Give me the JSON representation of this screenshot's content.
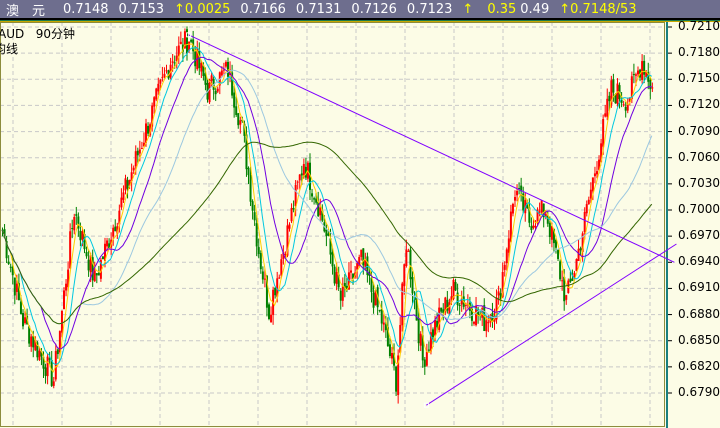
{
  "header": {
    "name": "澳　元",
    "fields": [
      "0.7148",
      "0.7153"
    ],
    "change_arrow": "↑",
    "change": "0.0025",
    "fields2": [
      "0.7166",
      "0.7131",
      "0.7126",
      "0.7123"
    ],
    "arrow2": "↑",
    "pct": "0.35",
    "field3": "0.49",
    "arrow3": "↑",
    "last": "0.7148/53"
  },
  "chart_label": {
    "symbol": "AUD",
    "period": "90分钟",
    "indicator": "均线"
  },
  "colors": {
    "up": "#ff0000",
    "down": "#008000",
    "trendline": "#8000ff",
    "ma_fast": "#ffd000",
    "ma_10": "#00c8e0",
    "ma_20": "#7000e0",
    "ma_40": "#9cc8e0",
    "ma_90": "#336600",
    "bg": "#fcfce6"
  },
  "chart_data": {
    "type": "candlestick",
    "y_ticks": [
      "0.7210",
      "0.7180",
      "0.7150",
      "0.7120",
      "0.7090",
      "0.7060",
      "0.7030",
      "0.7000",
      "0.6970",
      "0.6940",
      "0.6910",
      "0.6880",
      "0.6850",
      "0.6820",
      "0.6790"
    ],
    "ylim": [
      0.677,
      0.7225
    ],
    "price_path_waypoints": [
      [
        0,
        0.6977
      ],
      [
        10,
        0.6873
      ],
      [
        25,
        0.6805
      ],
      [
        35,
        0.7
      ],
      [
        45,
        0.6919
      ],
      [
        55,
        0.6988
      ],
      [
        70,
        0.7092
      ],
      [
        82,
        0.7172
      ],
      [
        91,
        0.7197
      ],
      [
        100,
        0.7138
      ],
      [
        110,
        0.7161
      ],
      [
        117,
        0.7092
      ],
      [
        125,
        0.6954
      ],
      [
        130,
        0.6885
      ],
      [
        137,
        0.6954
      ],
      [
        147,
        0.7057
      ],
      [
        155,
        0.7
      ],
      [
        165,
        0.6896
      ],
      [
        175,
        0.6942
      ],
      [
        185,
        0.6873
      ],
      [
        192,
        0.6805
      ],
      [
        197,
        0.6965
      ],
      [
        205,
        0.6827
      ],
      [
        210,
        0.6862
      ],
      [
        220,
        0.6908
      ],
      [
        235,
        0.6873
      ],
      [
        242,
        0.6896
      ],
      [
        250,
        0.7023
      ],
      [
        257,
        0.6988
      ],
      [
        265,
        0.7
      ],
      [
        275,
        0.6896
      ],
      [
        280,
        0.6942
      ],
      [
        290,
        0.7057
      ],
      [
        297,
        0.7138
      ],
      [
        305,
        0.7126
      ],
      [
        312,
        0.7172
      ],
      [
        317,
        0.714
      ]
    ],
    "moving_averages": [
      5,
      10,
      20,
      40,
      90
    ],
    "trendlines": [
      {
        "from": [
          91,
          0.7201
        ],
        "to": [
          328,
          0.694
        ]
      },
      {
        "from": [
          207,
          0.6776
        ],
        "to": [
          329,
          0.6961
        ]
      }
    ],
    "grid": true
  }
}
